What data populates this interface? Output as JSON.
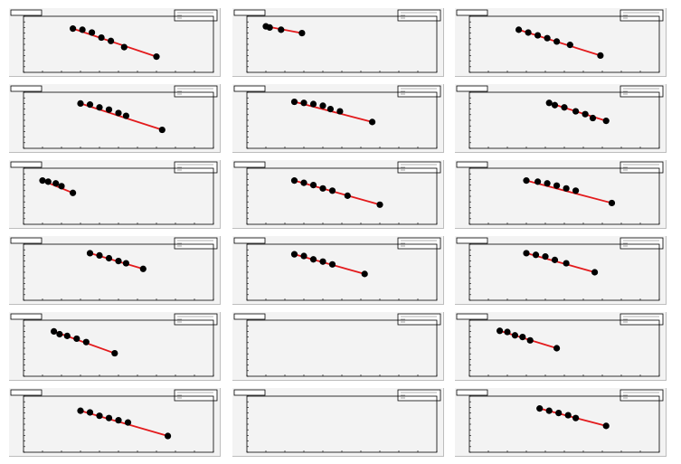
{
  "colors": {
    "pad_background": "#f3f3f3",
    "frame": "#000000",
    "fit_line": "#e31a1c",
    "markers": "#000000"
  },
  "chart_data": [
    {
      "type": "scatter",
      "fit": "linear",
      "ylim": [
        0,
        1
      ],
      "points": [
        [
          0.26,
          0.78
        ],
        [
          0.31,
          0.76
        ],
        [
          0.36,
          0.71
        ],
        [
          0.41,
          0.62
        ],
        [
          0.46,
          0.56
        ],
        [
          0.53,
          0.45
        ],
        [
          0.7,
          0.28
        ]
      ]
    },
    {
      "type": "scatter",
      "fit": "linear",
      "ylim": [
        0,
        1
      ],
      "points": [
        [
          0.1,
          0.82
        ],
        [
          0.12,
          0.8
        ],
        [
          0.18,
          0.76
        ],
        [
          0.29,
          0.7
        ]
      ]
    },
    {
      "type": "scatter",
      "fit": "linear",
      "ylim": [
        0,
        1
      ],
      "points": [
        [
          0.26,
          0.76
        ],
        [
          0.31,
          0.71
        ],
        [
          0.36,
          0.66
        ],
        [
          0.41,
          0.61
        ],
        [
          0.46,
          0.55
        ],
        [
          0.53,
          0.49
        ],
        [
          0.69,
          0.3
        ]
      ]
    },
    {
      "type": "scatter",
      "fit": "linear",
      "ylim": [
        0,
        1
      ],
      "points": [
        [
          0.3,
          0.8
        ],
        [
          0.35,
          0.78
        ],
        [
          0.4,
          0.73
        ],
        [
          0.45,
          0.69
        ],
        [
          0.5,
          0.63
        ],
        [
          0.54,
          0.58
        ],
        [
          0.73,
          0.33
        ]
      ]
    },
    {
      "type": "scatter",
      "fit": "linear",
      "ylim": [
        0,
        1
      ],
      "points": [
        [
          0.25,
          0.83
        ],
        [
          0.3,
          0.81
        ],
        [
          0.35,
          0.79
        ],
        [
          0.4,
          0.76
        ],
        [
          0.44,
          0.7
        ],
        [
          0.49,
          0.66
        ],
        [
          0.66,
          0.47
        ]
      ]
    },
    {
      "type": "scatter",
      "fit": "linear",
      "ylim": [
        0,
        1
      ],
      "points": [
        [
          0.42,
          0.81
        ],
        [
          0.45,
          0.77
        ],
        [
          0.5,
          0.73
        ],
        [
          0.56,
          0.66
        ],
        [
          0.61,
          0.61
        ],
        [
          0.65,
          0.54
        ],
        [
          0.72,
          0.49
        ]
      ]
    },
    {
      "type": "scatter",
      "fit": "linear",
      "ylim": [
        0,
        1
      ],
      "points": [
        [
          0.1,
          0.78
        ],
        [
          0.13,
          0.76
        ],
        [
          0.17,
          0.73
        ],
        [
          0.2,
          0.68
        ],
        [
          0.26,
          0.56
        ]
      ]
    },
    {
      "type": "scatter",
      "fit": "linear",
      "ylim": [
        0,
        1
      ],
      "points": [
        [
          0.25,
          0.78
        ],
        [
          0.3,
          0.74
        ],
        [
          0.35,
          0.7
        ],
        [
          0.4,
          0.64
        ],
        [
          0.45,
          0.6
        ],
        [
          0.53,
          0.51
        ],
        [
          0.7,
          0.35
        ]
      ]
    },
    {
      "type": "scatter",
      "fit": "linear",
      "ylim": [
        0,
        1
      ],
      "points": [
        [
          0.3,
          0.78
        ],
        [
          0.36,
          0.76
        ],
        [
          0.41,
          0.73
        ],
        [
          0.46,
          0.69
        ],
        [
          0.51,
          0.64
        ],
        [
          0.56,
          0.6
        ],
        [
          0.75,
          0.38
        ]
      ]
    },
    {
      "type": "scatter",
      "fit": "linear",
      "ylim": [
        0,
        1
      ],
      "points": [
        [
          0.35,
          0.84
        ],
        [
          0.4,
          0.8
        ],
        [
          0.45,
          0.75
        ],
        [
          0.5,
          0.7
        ],
        [
          0.54,
          0.66
        ],
        [
          0.63,
          0.56
        ]
      ]
    },
    {
      "type": "scatter",
      "fit": "linear",
      "ylim": [
        0,
        1
      ],
      "points": [
        [
          0.25,
          0.82
        ],
        [
          0.3,
          0.79
        ],
        [
          0.35,
          0.73
        ],
        [
          0.4,
          0.69
        ],
        [
          0.45,
          0.64
        ],
        [
          0.62,
          0.47
        ]
      ]
    },
    {
      "type": "scatter",
      "fit": "linear",
      "ylim": [
        0,
        1
      ],
      "points": [
        [
          0.3,
          0.84
        ],
        [
          0.35,
          0.81
        ],
        [
          0.4,
          0.78
        ],
        [
          0.45,
          0.72
        ],
        [
          0.51,
          0.66
        ],
        [
          0.66,
          0.5
        ]
      ]
    },
    {
      "type": "scatter",
      "fit": "linear",
      "ylim": [
        0,
        1
      ],
      "points": [
        [
          0.16,
          0.8
        ],
        [
          0.19,
          0.75
        ],
        [
          0.23,
          0.72
        ],
        [
          0.28,
          0.67
        ],
        [
          0.33,
          0.61
        ],
        [
          0.48,
          0.41
        ]
      ]
    },
    {
      "type": "scatter",
      "fit": "scatter",
      "ylim": [
        0,
        1
      ],
      "points": []
    },
    {
      "type": "scatter",
      "fit": "linear",
      "ylim": [
        0,
        1
      ],
      "points": [
        [
          0.16,
          0.81
        ],
        [
          0.2,
          0.79
        ],
        [
          0.24,
          0.73
        ],
        [
          0.28,
          0.7
        ],
        [
          0.32,
          0.64
        ],
        [
          0.46,
          0.5
        ]
      ]
    },
    {
      "type": "scatter",
      "fit": "linear",
      "ylim": [
        0,
        1
      ],
      "points": [
        [
          0.3,
          0.74
        ],
        [
          0.35,
          0.71
        ],
        [
          0.4,
          0.65
        ],
        [
          0.45,
          0.61
        ],
        [
          0.5,
          0.57
        ],
        [
          0.55,
          0.53
        ],
        [
          0.76,
          0.29
        ]
      ]
    },
    {
      "type": "scatter",
      "fit": "scatter",
      "ylim": [
        0,
        1
      ],
      "points": []
    },
    {
      "type": "scatter",
      "fit": "linear",
      "ylim": [
        0,
        1
      ],
      "points": [
        [
          0.37,
          0.78
        ],
        [
          0.42,
          0.74
        ],
        [
          0.47,
          0.7
        ],
        [
          0.52,
          0.66
        ],
        [
          0.56,
          0.61
        ],
        [
          0.72,
          0.47
        ]
      ]
    }
  ]
}
